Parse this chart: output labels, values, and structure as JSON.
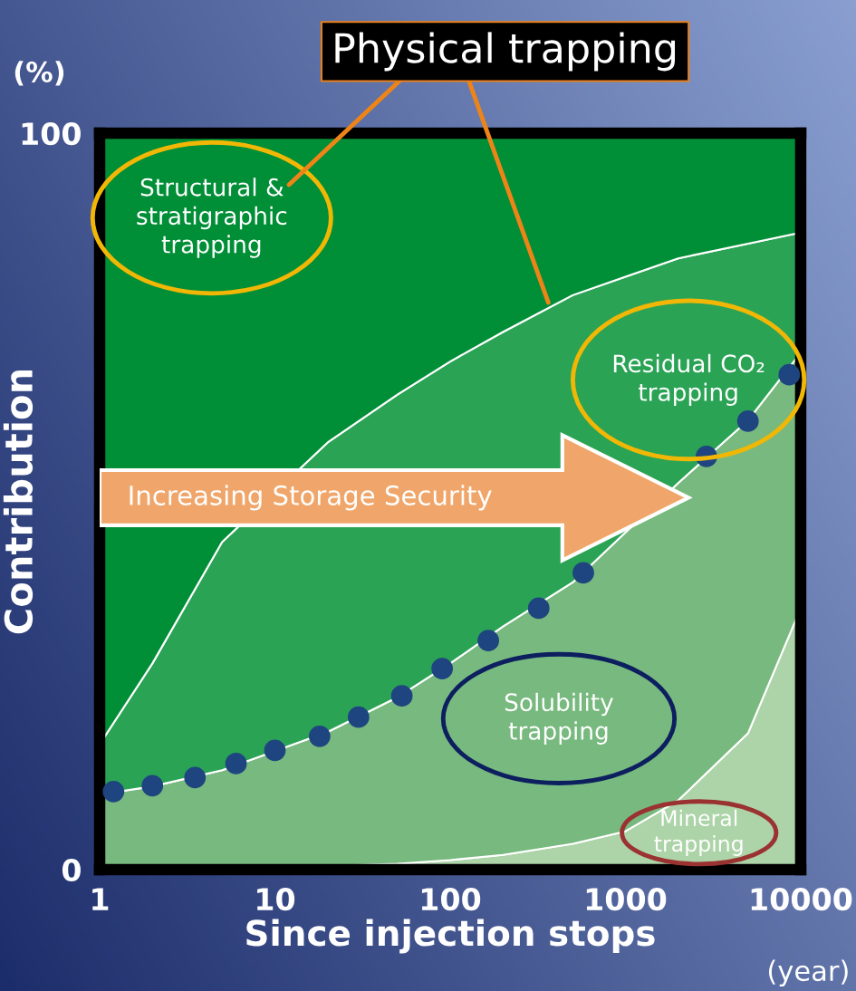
{
  "chart_data": {
    "type": "area",
    "title": "Physical trapping",
    "xlabel": "Since injection stops",
    "ylabel": "Contribution",
    "annotations": [
      "(%)",
      "(year)",
      "Increasing Storage Security"
    ],
    "x": [
      1,
      2,
      5,
      20,
      50,
      100,
      200,
      500,
      1000,
      2000,
      5000,
      10000
    ],
    "stacked": true,
    "log": "x",
    "xlim": [
      1,
      10000
    ],
    "xticks": [
      1,
      10,
      100,
      1000,
      10000
    ],
    "ylim": [
      0,
      100
    ],
    "yticks": [
      0,
      100
    ],
    "grid": false,
    "series": [
      {
        "name": "Mineral\ntrapping",
        "color": "#add4a8",
        "values": [
          0,
          0,
          0.1,
          0.5,
          0.8,
          1.3,
          2,
          3.5,
          5.2,
          9.4,
          18.5,
          35.5
        ]
      },
      {
        "name": "Solubility\ntrapping",
        "color": "#77b97e",
        "values": [
          10.2,
          11.3,
          13.4,
          18.2,
          22.6,
          26.7,
          31,
          35.5,
          40.6,
          43.1,
          42.5,
          34.7
        ]
      },
      {
        "name": "Residual CO₂\ntrapping",
        "color": "#2ba355",
        "values": [
          6.8,
          16.7,
          31,
          39.3,
          41.1,
          41,
          40,
          39,
          34.7,
          30.5,
          24,
          16.3
        ]
      },
      {
        "name": "Structural &\nstratigraphic\ntrapping",
        "color": "#008f36",
        "values": [
          83,
          72,
          55.5,
          42,
          35.5,
          31,
          27,
          22,
          19.5,
          17,
          15,
          13.5
        ]
      },
      {
        "type": "scatter",
        "marker": "circle",
        "color": "#1f4580",
        "x": [
          1.2,
          2,
          3.5,
          6,
          10,
          18,
          30,
          53,
          90,
          165,
          320,
          575,
          2900,
          5000,
          8600
        ],
        "values": [
          10.6,
          11.4,
          12.5,
          14.4,
          16.2,
          18.1,
          20.7,
          23.6,
          27.3,
          31.1,
          35.5,
          40.3,
          56.1,
          60.9,
          67.2
        ]
      }
    ]
  }
}
